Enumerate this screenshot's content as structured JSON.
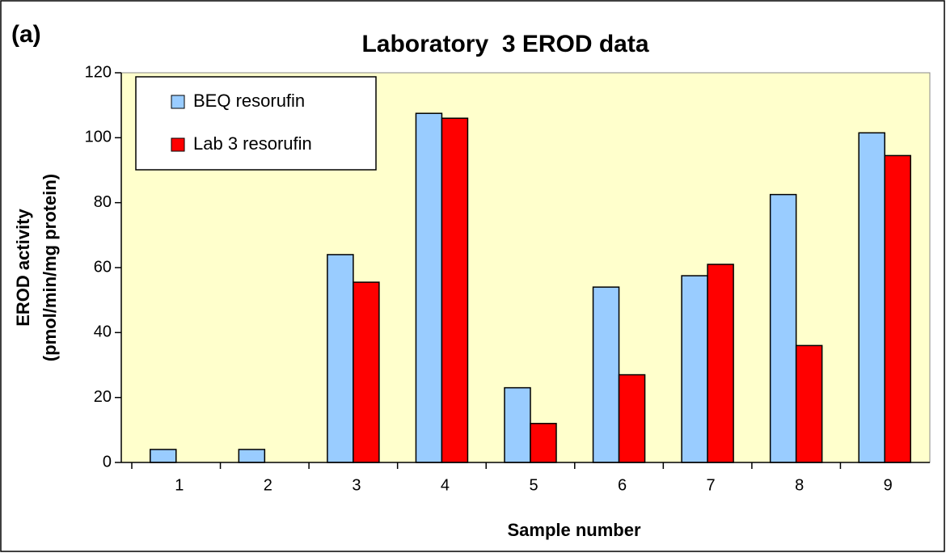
{
  "panel_label": "(a)",
  "chart_data": {
    "type": "bar",
    "title": "Laboratory  3 EROD data",
    "x_label": "Sample number",
    "y_label": [
      "EROD activity",
      "(pmol/min/mg protein)"
    ],
    "categories": [
      "1",
      "2",
      "3",
      "4",
      "5",
      "6",
      "7",
      "8",
      "9"
    ],
    "series": [
      {
        "name": "BEQ resorufin",
        "color": "#99ccff",
        "values": [
          4,
          4,
          64,
          107.5,
          23,
          54,
          57.5,
          82.5,
          101.5
        ]
      },
      {
        "name": "Lab 3 resorufin",
        "color": "#ff0000",
        "values": [
          null,
          null,
          55.5,
          106,
          12,
          27,
          61,
          36,
          94.5
        ]
      }
    ],
    "ylim": [
      0,
      120
    ],
    "yticks": [
      0,
      20,
      40,
      60,
      80,
      100,
      120
    ],
    "grid": false,
    "legend": "upper left",
    "plot_background": "#ffffcc"
  }
}
